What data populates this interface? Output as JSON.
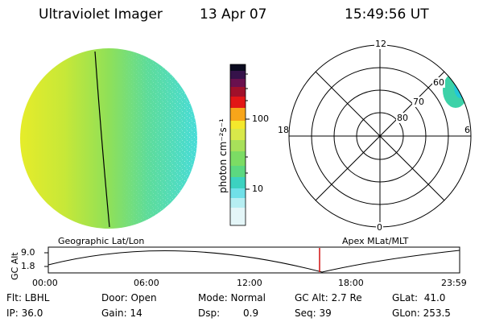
{
  "header": {
    "instrument": "Ultraviolet Imager",
    "date": "13 Apr 07",
    "time": "15:49:56 UT"
  },
  "colorbar": {
    "unit_label": "photon cm⁻²s⁻¹",
    "ticks": [
      "100",
      "10"
    ]
  },
  "polar_plot": {
    "mlt_labels": [
      "12",
      "18",
      "6",
      "0"
    ],
    "lat_labels": [
      "60",
      "70",
      "80"
    ]
  },
  "panel_labels": {
    "left": "Geographic Lat/Lon",
    "right": "Apex MLat/MLT"
  },
  "altitude_plot": {
    "ylabel": "GC Alt",
    "yticks": [
      "9.0",
      "1.8"
    ],
    "xticks": [
      "00:00",
      "06:00",
      "12:00",
      "18:00",
      "23:59"
    ]
  },
  "info": {
    "flt": "Flt: LBHL",
    "ip": "IP: 36.0",
    "door": "Door: Open",
    "gain": "Gain: 14",
    "mode": "Mode: Normal",
    "dsp_label": "Dsp:",
    "dsp_value": "0.9",
    "gc_alt": "GC Alt: 2.7 Re",
    "seq": "Seq: 39",
    "glat": "GLat:  41.0",
    "glon": "GLon: 253.5"
  },
  "colors": {
    "altitude_marker": "#d01010",
    "trace": "#000000"
  }
}
